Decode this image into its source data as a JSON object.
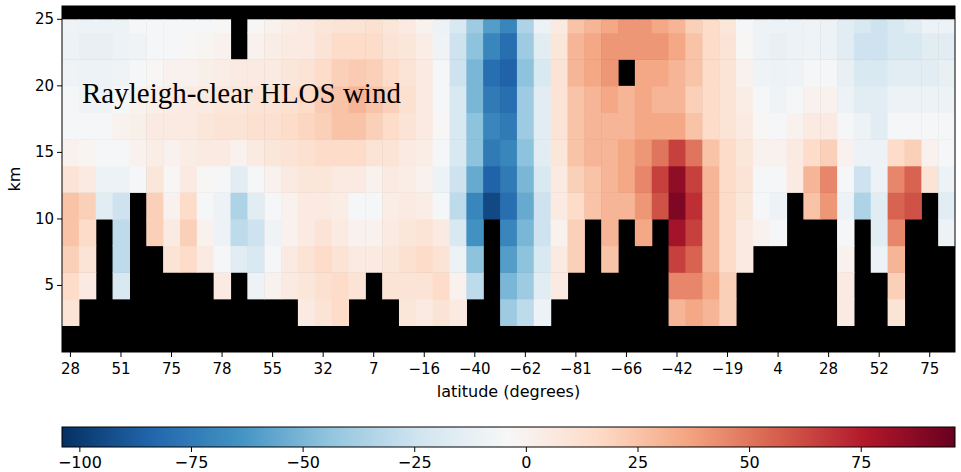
{
  "chart_data": {
    "type": "heatmap",
    "annotation": "Rayleigh-clear HLOS wind",
    "x_label": "latitude (degrees)",
    "y_label": "km",
    "categories": [
      "28",
      null,
      null,
      "51",
      null,
      null,
      "75",
      null,
      null,
      "78",
      null,
      null,
      "55",
      null,
      null,
      "32",
      null,
      null,
      "7",
      null,
      null,
      "−16",
      null,
      null,
      "−40",
      null,
      null,
      "−62",
      null,
      null,
      "−81",
      null,
      null,
      "−66",
      null,
      null,
      "−42",
      null,
      null,
      "−19",
      null,
      null,
      "4",
      null,
      null,
      "28",
      null,
      null,
      "52",
      null,
      null,
      "75",
      null
    ],
    "ylim": [
      0,
      26
    ],
    "yticks": [
      5,
      10,
      15,
      20,
      25
    ],
    "y_bins": [
      0,
      2,
      4,
      6,
      8,
      10,
      12,
      14,
      16,
      18,
      20,
      22,
      24,
      25
    ],
    "color_range": [
      -104,
      96
    ],
    "color_ticks": [
      {
        "value": -100,
        "label": "−100"
      },
      {
        "value": -75,
        "label": "−75"
      },
      {
        "value": -50,
        "label": "−50"
      },
      {
        "value": -25,
        "label": "−25"
      },
      0,
      25,
      50,
      75
    ],
    "cells": [
      [
        null,
        null,
        null,
        null,
        null,
        null,
        null,
        null,
        null,
        null,
        null,
        null,
        null,
        null,
        null,
        null,
        null,
        null,
        null,
        null,
        null,
        null,
        null,
        null,
        null,
        null,
        null,
        null,
        null,
        null,
        null,
        null,
        null,
        null,
        null,
        null,
        null,
        null,
        null,
        null,
        null,
        null,
        null,
        null,
        null,
        null,
        null,
        null,
        null,
        null,
        null,
        null,
        null
      ],
      [
        10,
        null,
        null,
        null,
        null,
        null,
        null,
        null,
        null,
        null,
        null,
        null,
        null,
        null,
        5,
        10,
        15,
        null,
        null,
        null,
        8,
        5,
        10,
        5,
        null,
        null,
        -40,
        -30,
        -10,
        null,
        null,
        null,
        null,
        null,
        null,
        null,
        30,
        35,
        30,
        20,
        null,
        null,
        null,
        null,
        null,
        null,
        5,
        null,
        null,
        10,
        null,
        null,
        null
      ],
      [
        15,
        5,
        null,
        -20,
        null,
        null,
        null,
        null,
        null,
        5,
        null,
        -10,
        0,
        5,
        8,
        12,
        15,
        10,
        null,
        10,
        10,
        10,
        15,
        0,
        -30,
        null,
        -50,
        -40,
        -15,
        5,
        null,
        null,
        null,
        null,
        null,
        null,
        45,
        45,
        35,
        20,
        null,
        null,
        null,
        null,
        null,
        null,
        5,
        null,
        null,
        20,
        null,
        null,
        null
      ],
      [
        20,
        10,
        null,
        -30,
        null,
        null,
        10,
        15,
        5,
        -5,
        -15,
        -20,
        -5,
        5,
        10,
        15,
        10,
        5,
        5,
        8,
        12,
        15,
        10,
        -10,
        -45,
        null,
        -60,
        -45,
        -20,
        5,
        20,
        null,
        25,
        null,
        null,
        null,
        65,
        55,
        30,
        15,
        5,
        null,
        null,
        null,
        null,
        null,
        0,
        null,
        -10,
        30,
        null,
        null,
        null
      ],
      [
        25,
        15,
        null,
        -30,
        null,
        20,
        5,
        20,
        0,
        -10,
        -30,
        -25,
        -8,
        0,
        5,
        10,
        5,
        0,
        0,
        5,
        8,
        10,
        5,
        -20,
        -65,
        null,
        -70,
        -50,
        -25,
        0,
        20,
        null,
        30,
        null,
        35,
        null,
        80,
        65,
        30,
        15,
        5,
        0,
        -5,
        null,
        null,
        null,
        -5,
        null,
        -15,
        45,
        null,
        null,
        -10
      ],
      [
        25,
        20,
        -15,
        -25,
        null,
        20,
        0,
        15,
        -5,
        -10,
        -35,
        -15,
        -5,
        0,
        5,
        5,
        3,
        -5,
        -5,
        3,
        5,
        3,
        -5,
        -30,
        -70,
        -95,
        -80,
        -55,
        -25,
        5,
        15,
        25,
        30,
        30,
        40,
        60,
        90,
        70,
        30,
        15,
        8,
        -5,
        -10,
        null,
        25,
        40,
        -10,
        -35,
        -15,
        55,
        60,
        null,
        -15
      ],
      [
        10,
        5,
        -10,
        -10,
        -5,
        8,
        -3,
        5,
        -3,
        -5,
        -15,
        -5,
        0,
        5,
        8,
        8,
        5,
        5,
        0,
        5,
        3,
        0,
        -10,
        -25,
        -55,
        -85,
        -75,
        -50,
        -20,
        5,
        20,
        25,
        30,
        35,
        45,
        65,
        85,
        65,
        30,
        15,
        10,
        -5,
        -5,
        5,
        30,
        45,
        -5,
        -25,
        -10,
        45,
        55,
        10,
        -10
      ],
      [
        0,
        -2,
        -5,
        -5,
        0,
        3,
        0,
        3,
        5,
        5,
        0,
        5,
        8,
        10,
        12,
        15,
        15,
        15,
        10,
        10,
        5,
        3,
        -5,
        -20,
        -45,
        -75,
        -70,
        -45,
        -15,
        8,
        25,
        30,
        30,
        35,
        40,
        50,
        65,
        50,
        25,
        15,
        8,
        0,
        0,
        5,
        15,
        20,
        0,
        -10,
        -10,
        15,
        20,
        0,
        -5
      ],
      [
        -5,
        -5,
        -5,
        0,
        2,
        5,
        5,
        5,
        8,
        10,
        10,
        12,
        12,
        15,
        18,
        20,
        25,
        25,
        20,
        15,
        10,
        5,
        -3,
        -20,
        -45,
        -70,
        -75,
        -40,
        -15,
        10,
        25,
        30,
        30,
        30,
        35,
        35,
        35,
        25,
        15,
        10,
        5,
        -3,
        -5,
        0,
        5,
        5,
        -5,
        -10,
        -15,
        -5,
        -5,
        -5,
        -5
      ],
      [
        -5,
        -8,
        -8,
        -5,
        0,
        2,
        3,
        5,
        5,
        8,
        8,
        10,
        10,
        12,
        15,
        22,
        25,
        30,
        25,
        20,
        12,
        5,
        -5,
        -20,
        -50,
        -75,
        -80,
        -40,
        -15,
        10,
        25,
        30,
        35,
        30,
        35,
        30,
        30,
        20,
        15,
        10,
        3,
        -5,
        -8,
        -5,
        0,
        0,
        -10,
        -15,
        -15,
        -10,
        -10,
        -10,
        -10
      ],
      [
        -8,
        -10,
        -10,
        -8,
        -5,
        -3,
        0,
        0,
        2,
        3,
        5,
        5,
        5,
        8,
        10,
        15,
        20,
        22,
        20,
        15,
        10,
        5,
        -5,
        -25,
        -50,
        -80,
        -85,
        -45,
        -20,
        10,
        30,
        35,
        40,
        null,
        35,
        35,
        30,
        25,
        15,
        10,
        0,
        -8,
        -10,
        -8,
        -5,
        -5,
        -12,
        -20,
        -20,
        -15,
        -15,
        -15,
        -12
      ],
      [
        -10,
        -12,
        -12,
        -10,
        -8,
        -5,
        -5,
        -3,
        -2,
        0,
        null,
        0,
        3,
        5,
        5,
        10,
        15,
        15,
        15,
        10,
        8,
        3,
        -8,
        -25,
        -45,
        -70,
        -80,
        -40,
        -15,
        8,
        30,
        35,
        40,
        40,
        40,
        40,
        35,
        25,
        15,
        10,
        -3,
        -10,
        -12,
        -10,
        -8,
        -10,
        -15,
        -25,
        -25,
        -20,
        -20,
        -15,
        -15
      ],
      [
        -8,
        -10,
        -10,
        -10,
        -5,
        -5,
        -5,
        -5,
        -5,
        -3,
        null,
        -3,
        0,
        3,
        5,
        8,
        10,
        10,
        12,
        8,
        5,
        0,
        -10,
        -20,
        -40,
        -60,
        -70,
        -35,
        -10,
        5,
        25,
        30,
        35,
        40,
        40,
        35,
        30,
        20,
        15,
        8,
        -5,
        -10,
        -10,
        -10,
        -8,
        -10,
        -15,
        -20,
        -25,
        -20,
        -15,
        -10,
        -10
      ]
    ]
  }
}
